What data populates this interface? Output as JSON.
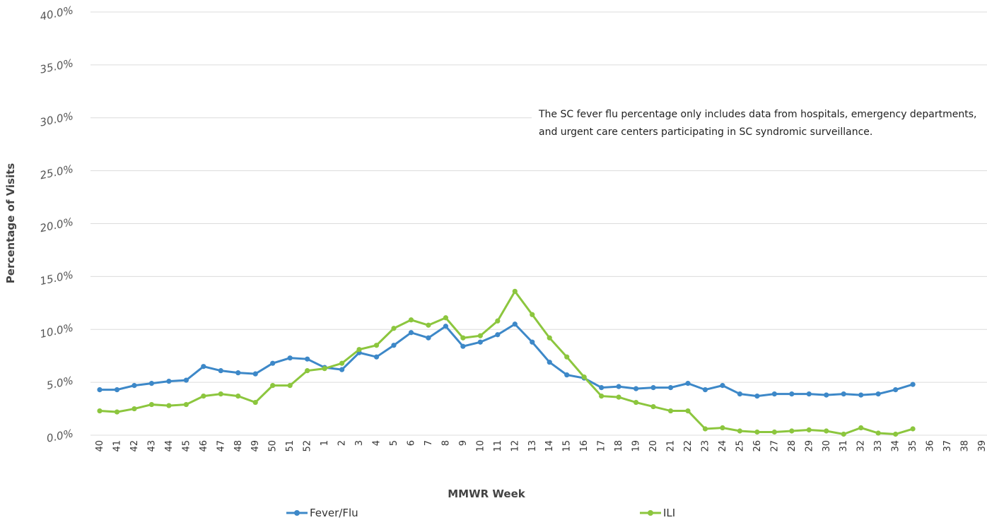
{
  "chart_data": {
    "type": "line",
    "y_label": "Percentage of Visits",
    "x_label": "MMWR Week",
    "annotation": "The SC fever flu percentage only includes data from hospitals, emergency departments, and urgent care centers participating in SC syndromic surveillance.",
    "categories": [
      "40",
      "41",
      "42",
      "43",
      "44",
      "45",
      "46",
      "47",
      "48",
      "49",
      "50",
      "51",
      "52",
      "1",
      "2",
      "3",
      "4",
      "5",
      "6",
      "7",
      "8",
      "9",
      "10",
      "11",
      "12",
      "13",
      "14",
      "15",
      "16",
      "17",
      "18",
      "19",
      "20",
      "21",
      "22",
      "23",
      "24",
      "25",
      "26",
      "27",
      "28",
      "29",
      "30",
      "31",
      "32",
      "33",
      "34",
      "35",
      "36",
      "37",
      "38",
      "39"
    ],
    "series": [
      {
        "name": "Fever/Flu",
        "color": "#3d88c8",
        "values": [
          4.3,
          4.3,
          4.7,
          4.9,
          5.1,
          5.2,
          6.5,
          6.1,
          5.9,
          5.8,
          6.8,
          7.3,
          7.2,
          6.4,
          6.2,
          7.8,
          7.4,
          8.5,
          9.7,
          9.2,
          10.3,
          8.4,
          8.8,
          9.5,
          10.5,
          8.8,
          6.9,
          5.7,
          5.4,
          4.5,
          4.6,
          4.4,
          4.5,
          4.5,
          4.9,
          4.3,
          4.7,
          3.9,
          3.7,
          3.9,
          3.9,
          3.9,
          3.8,
          3.9,
          3.8,
          3.9,
          4.3,
          4.8,
          null,
          null,
          null,
          null
        ]
      },
      {
        "name": "ILI",
        "color": "#8cc63e",
        "values": [
          2.3,
          2.2,
          2.5,
          2.9,
          2.8,
          2.9,
          3.7,
          3.9,
          3.7,
          3.1,
          4.7,
          4.7,
          6.1,
          6.3,
          6.8,
          8.1,
          8.5,
          10.1,
          10.9,
          10.4,
          11.1,
          9.2,
          9.4,
          10.8,
          13.6,
          11.4,
          9.2,
          7.4,
          5.5,
          3.7,
          3.6,
          3.1,
          2.7,
          2.3,
          2.3,
          0.6,
          0.7,
          0.4,
          0.3,
          0.3,
          0.4,
          0.5,
          0.4,
          0.1,
          0.7,
          0.2,
          0.1,
          0.6,
          null,
          null,
          null,
          null
        ]
      }
    ],
    "ylim": [
      0,
      40
    ],
    "yticks": [
      {
        "value": 0,
        "label": "0.0%"
      },
      {
        "value": 5,
        "label": "5.0%"
      },
      {
        "value": 10,
        "label": "10.0%"
      },
      {
        "value": 15,
        "label": "15.0%"
      },
      {
        "value": 20,
        "label": "20.0%"
      },
      {
        "value": 25,
        "label": "25.0%"
      },
      {
        "value": 30,
        "label": "30.0%"
      },
      {
        "value": 35,
        "label": "35.0%"
      },
      {
        "value": 40,
        "label": "40.0%"
      }
    ],
    "grid": true
  }
}
